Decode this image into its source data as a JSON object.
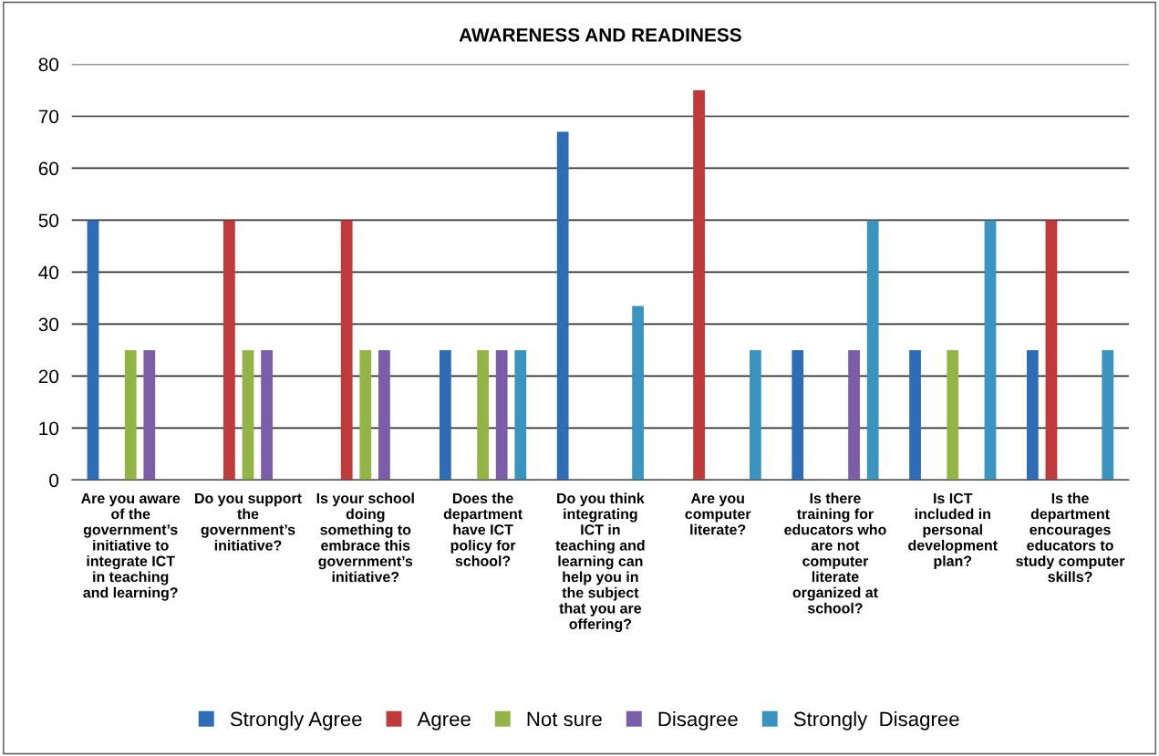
{
  "chart_data": {
    "type": "bar",
    "title": "AWARENESS AND READINESS",
    "categories": [
      "Are you aware of the government’s initiative to integrate ICT in teaching and learning?",
      "Do you support the government’s initiative?",
      "Is your school doing something to embrace this government’s initiative?",
      "Does the department have ICT policy for school?",
      "Do you think integrating ICT in teaching and learning can help you in the subject that you are offering?",
      "Are you computer literate?",
      "Is there training for educators who are not computer literate organized at school?",
      "Is ICT included in personal development plan?",
      "Is the department encourages educators to study computer skills?"
    ],
    "series": [
      {
        "name": "Strongly Agree",
        "color": "#2e6db5",
        "values": [
          50,
          0,
          0,
          25,
          67,
          0,
          25,
          25,
          25
        ]
      },
      {
        "name": "Agree",
        "color": "#c0393b",
        "values": [
          0,
          50,
          50,
          0,
          0,
          75,
          0,
          0,
          50
        ]
      },
      {
        "name": "Not sure",
        "color": "#93b447",
        "values": [
          25,
          25,
          25,
          25,
          0,
          0,
          0,
          25,
          0
        ]
      },
      {
        "name": "Disagree",
        "color": "#7b5ea7",
        "values": [
          25,
          25,
          25,
          25,
          0,
          0,
          25,
          0,
          0
        ]
      },
      {
        "name": "Strongly  Disagree",
        "color": "#3b93c0",
        "values": [
          0,
          0,
          0,
          25,
          33.5,
          25,
          50,
          50,
          25
        ]
      }
    ],
    "ylim": [
      0,
      80
    ],
    "yticks": [
      0,
      10,
      20,
      30,
      40,
      50,
      60,
      70,
      80
    ],
    "grid": "y",
    "legend": "bottom"
  }
}
